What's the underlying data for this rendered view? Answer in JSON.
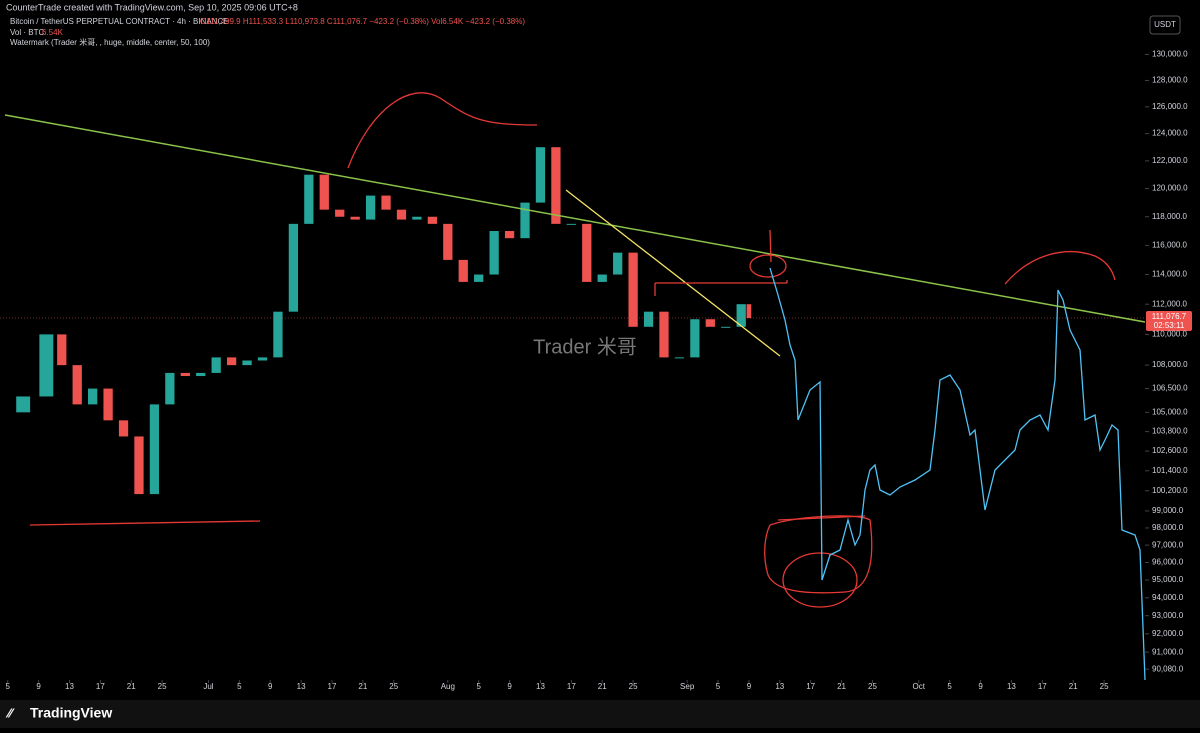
{
  "header": {
    "credit": "CounterTrade created with TradingView.com, Sep 10, 2025 09:06 UTC+8",
    "symbol": "Bitcoin / TetherUS PERPETUAL CONTRACT · 4h · BINANCE",
    "ohlc": "O111,499.9 H111,533.3 L110,973.8 C111,076.7 −423.2 (−0.38%) Vol6.54K −423.2 (−0.38%)",
    "volume_label": "Vol · BTC",
    "volume_value": "6.54K",
    "watermark_line": "Watermark (Trader 米哥, , huge, middle, center, 50, 100)"
  },
  "currency": "USDT",
  "watermark": "Trader 米哥",
  "price_label": "111,076.7",
  "countdown": "02:53:11",
  "brand": "TradingView",
  "chart_data": {
    "type": "candlestick",
    "log_scale": true,
    "ylim": [
      89500,
      132700
    ],
    "xlim": [
      3,
      151.3
    ],
    "up_color": "#26a69a",
    "down_color": "#ef5350",
    "x": [
      3,
      6,
      9,
      11,
      13,
      15,
      17,
      19,
      21,
      23,
      25,
      27,
      29,
      31,
      33,
      35,
      37,
      39,
      41,
      43,
      45,
      47,
      49,
      51,
      53,
      55,
      57,
      59,
      61,
      63,
      65,
      67,
      69,
      71,
      73,
      75,
      77,
      79,
      81,
      83,
      85,
      87,
      89,
      91,
      93,
      95,
      97,
      99,
      100
    ],
    "values": [
      105000,
      106000,
      110000,
      108000,
      105500,
      106500,
      104500,
      103500,
      100000,
      105500,
      107500,
      107300,
      107500,
      108500,
      108000,
      108300,
      108500,
      111500,
      117500,
      121000,
      118500,
      118000,
      117800,
      119500,
      118500,
      117800,
      118000,
      117500,
      115000,
      113500,
      114000,
      117000,
      116500,
      119000,
      123000,
      117500,
      117500,
      113500,
      114000,
      115500,
      110500,
      111500,
      108500,
      108500,
      111000,
      110500,
      110500,
      112000,
      111076.7
    ],
    "yticks": [
      {
        "value": 130000,
        "label": "130,000.0"
      },
      {
        "value": 128000,
        "label": "128,000.0"
      },
      {
        "value": 126000,
        "label": "126,000.0"
      },
      {
        "value": 124000,
        "label": "124,000.0"
      },
      {
        "value": 122000,
        "label": "122,000.0"
      },
      {
        "value": 120000,
        "label": "120,000.0"
      },
      {
        "value": 118000,
        "label": "118,000.0"
      },
      {
        "value": 116000,
        "label": "116,000.0"
      },
      {
        "value": 114000,
        "label": "114,000.0"
      },
      {
        "value": 112000,
        "label": "112,000.0"
      },
      {
        "value": 110000,
        "label": "110,000.0"
      },
      {
        "value": 108000,
        "label": "108,000.0"
      },
      {
        "value": 106500,
        "label": "106,500.0"
      },
      {
        "value": 105000,
        "label": "105,000.0"
      },
      {
        "value": 103800,
        "label": "103,800.0"
      },
      {
        "value": 102600,
        "label": "102,600.0"
      },
      {
        "value": 101400,
        "label": "101,400.0"
      },
      {
        "value": 100200,
        "label": "100,200.0"
      },
      {
        "value": 99000,
        "label": "99,000.0"
      },
      {
        "value": 98000,
        "label": "98,000.0"
      },
      {
        "value": 97000,
        "label": "97,000.0"
      },
      {
        "value": 96000,
        "label": "96,000.0"
      },
      {
        "value": 95000,
        "label": "95,000.0"
      },
      {
        "value": 94000,
        "label": "94,000.0"
      },
      {
        "value": 93000,
        "label": "93,000.0"
      },
      {
        "value": 92000,
        "label": "92,000.0"
      },
      {
        "value": 91000,
        "label": "91,000.0"
      },
      {
        "value": 90080,
        "label": "90,080.0"
      }
    ],
    "xticks": [
      {
        "value": 4,
        "label": "5"
      },
      {
        "value": 8,
        "label": "9"
      },
      {
        "value": 12,
        "label": "13"
      },
      {
        "value": 16,
        "label": "17"
      },
      {
        "value": 20,
        "label": "21"
      },
      {
        "value": 24,
        "label": "25"
      },
      {
        "value": 30,
        "label": "Jul"
      },
      {
        "value": 34,
        "label": "5"
      },
      {
        "value": 38,
        "label": "9"
      },
      {
        "value": 42,
        "label": "13"
      },
      {
        "value": 46,
        "label": "17"
      },
      {
        "value": 50,
        "label": "21"
      },
      {
        "value": 54,
        "label": "25"
      },
      {
        "value": 61,
        "label": "Aug"
      },
      {
        "value": 65,
        "label": "5"
      },
      {
        "value": 69,
        "label": "9"
      },
      {
        "value": 73,
        "label": "13"
      },
      {
        "value": 77,
        "label": "17"
      },
      {
        "value": 81,
        "label": "21"
      },
      {
        "value": 85,
        "label": "25"
      },
      {
        "value": 92,
        "label": "Sep"
      },
      {
        "value": 96,
        "label": "5"
      },
      {
        "value": 100,
        "label": "9"
      },
      {
        "value": 104,
        "label": "13"
      },
      {
        "value": 108,
        "label": "17"
      },
      {
        "value": 112,
        "label": "21"
      },
      {
        "value": 116,
        "label": "25"
      },
      {
        "value": 122,
        "label": "Oct"
      },
      {
        "value": 126,
        "label": "5"
      },
      {
        "value": 130,
        "label": "9"
      },
      {
        "value": 134,
        "label": "13"
      },
      {
        "value": 138,
        "label": "17"
      },
      {
        "value": 142,
        "label": "21"
      },
      {
        "value": 146,
        "label": "25"
      }
    ]
  }
}
